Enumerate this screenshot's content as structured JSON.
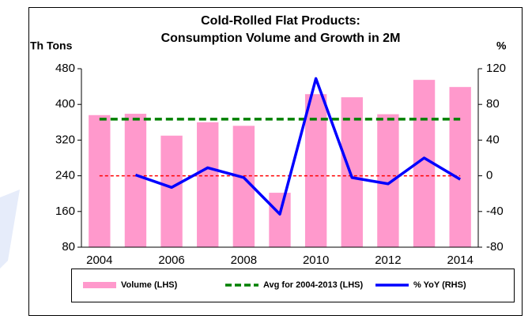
{
  "chart_data": {
    "type": "bar-line",
    "title": "Cold-Rolled Flat Products:",
    "subtitle": "Consumption Volume and Growth in 2M",
    "y_label": "Th Tons",
    "y2_label": "%",
    "categories": [
      "2004",
      null,
      "2006",
      null,
      "2008",
      null,
      "2010",
      null,
      "2012",
      null,
      "2014"
    ],
    "series": [
      {
        "name": "Volume (LHS)",
        "kind": "bar",
        "color": "#ff99cc",
        "values": [
          376,
          379,
          330,
          360,
          352,
          202,
          423,
          416,
          378,
          455,
          439
        ]
      },
      {
        "name": "Avg for 2004-2013 (LHS)",
        "kind": "dashed",
        "color": "#008000",
        "values": [
          367,
          367,
          367,
          367,
          367,
          367,
          367,
          367,
          367,
          367,
          367
        ]
      },
      {
        "name": "% YoY (RHS)",
        "kind": "line",
        "axis": "y2",
        "color": "#0000ff",
        "values": [
          null,
          1,
          -13,
          9,
          -2,
          -43,
          109,
          -2,
          -9,
          20,
          -4
        ]
      }
    ],
    "reference_line": {
      "value": 0,
      "axis": "y2",
      "color": "#ff0000"
    },
    "ylim": [
      80,
      480
    ],
    "yticks": [
      80,
      160,
      240,
      320,
      400,
      480
    ],
    "y2lim": [
      -80,
      120
    ],
    "y2ticks": [
      -80,
      -40,
      0,
      40,
      80,
      120
    ],
    "legend": "bottom"
  }
}
